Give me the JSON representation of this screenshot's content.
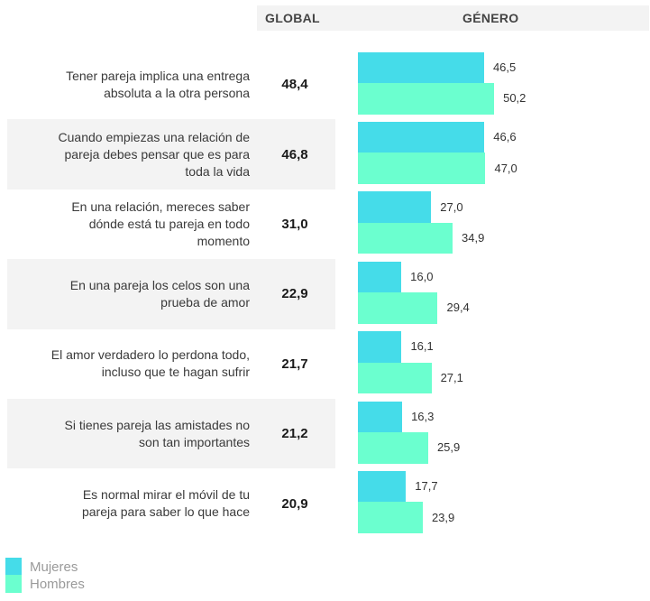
{
  "chart_data": {
    "type": "bar",
    "orientation": "horizontal",
    "column_headers": {
      "global": "GLOBAL",
      "gender": "GÉNERO"
    },
    "categories": [
      [
        "Tener pareja implica una entrega",
        "absoluta a la otra persona"
      ],
      [
        "Cuando empiezas una relación de",
        "pareja debes pensar que es para",
        "toda la vida"
      ],
      [
        "En una relación, mereces saber",
        "dónde está tu pareja en todo",
        "momento"
      ],
      [
        "En una pareja los celos son una",
        "prueba de amor"
      ],
      [
        "El amor verdadero lo perdona todo,",
        "incluso que te hagan sufrir"
      ],
      [
        "Si tienes pareja las amistades no",
        "son tan importantes"
      ],
      [
        "Es normal mirar el móvil de tu",
        "pareja para saber lo que hace"
      ]
    ],
    "global_values": [
      "48,4",
      "46,8",
      "31,0",
      "22,9",
      "21,7",
      "21,2",
      "20,9"
    ],
    "series": [
      {
        "name": "Mujeres",
        "color": "#45dce9",
        "values": [
          46.5,
          46.6,
          27.0,
          16.0,
          16.1,
          16.3,
          17.7
        ],
        "labels": [
          "46,5",
          "46,6",
          "27,0",
          "16,0",
          "16,1",
          "16,3",
          "17,7"
        ]
      },
      {
        "name": "Hombres",
        "color": "#6bffcf",
        "values": [
          50.2,
          47.0,
          34.9,
          29.4,
          27.1,
          25.9,
          23.9
        ],
        "labels": [
          "50,2",
          "47,0",
          "34,9",
          "29,4",
          "27,1",
          "25,9",
          "23,9"
        ]
      }
    ],
    "xlim": [
      0,
      100
    ],
    "legend": {
      "position": "bottom-left",
      "items": [
        "Mujeres",
        "Hombres"
      ]
    }
  }
}
